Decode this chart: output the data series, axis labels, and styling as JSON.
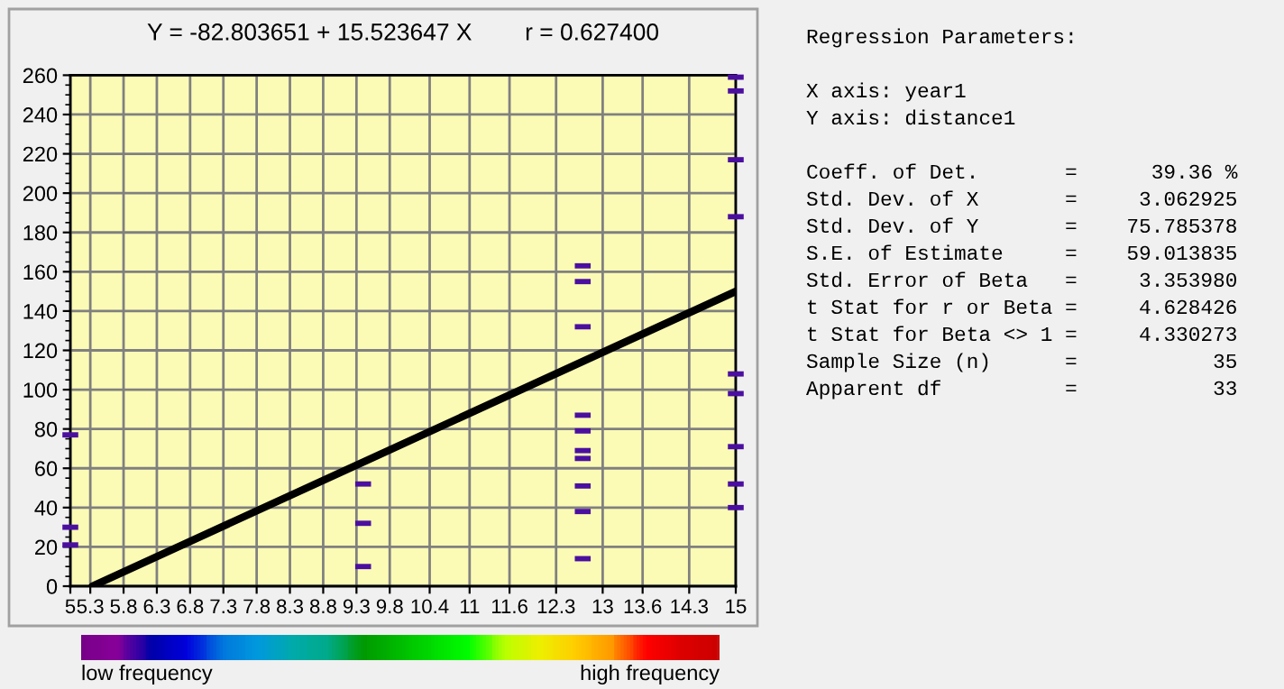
{
  "chart_data": {
    "type": "scatter",
    "title": "Y = -82.803651 + 15.523647 X        r = 0.627400",
    "xlim": [
      5,
      15
    ],
    "xticks": [
      5,
      5.3,
      5.8,
      6.3,
      6.8,
      7.3,
      7.8,
      8.3,
      8.8,
      9.3,
      9.8,
      10.4,
      11,
      11.6,
      12.3,
      13,
      13.6,
      14.3,
      15
    ],
    "ylim": [
      0,
      260
    ],
    "yticks": [
      0,
      20,
      40,
      60,
      80,
      100,
      120,
      140,
      160,
      180,
      200,
      220,
      240,
      260
    ],
    "grid": true,
    "series": [
      {
        "marker": "square",
        "color": "#4b0fa0",
        "x": [
          5,
          5,
          5,
          9.4,
          9.4,
          9.4,
          12.7,
          12.7,
          12.7,
          12.7,
          12.7,
          12.7,
          12.7,
          12.7,
          12.7,
          12.7,
          15,
          15,
          15,
          15,
          15,
          15,
          15,
          15,
          15
        ],
        "values": [
          77,
          30,
          21,
          52,
          32,
          10,
          163,
          155,
          132,
          87,
          79,
          69,
          65,
          51,
          38,
          14,
          259,
          252,
          217,
          188,
          108,
          98,
          71,
          52,
          40
        ]
      },
      {
        "type": "line",
        "color": "#000000",
        "x": [
          5.33,
          15
        ],
        "values": [
          0,
          150
        ]
      }
    ],
    "annotations": [
      "low frequency",
      "high frequency",
      "Regression Parameters:",
      "X axis: year1",
      "Y axis: distance1",
      "Coeff. of Det.       =      39.36 %",
      "Std. Dev. of X       =     3.062925",
      "Std. Dev. of Y       =    75.785378",
      "S.E. of Estimate     =    59.013835",
      "Std. Error of Beta   =     3.353980",
      "t Stat for r or Beta =     4.628426",
      "t Stat for Beta <> 1 =     4.330273",
      "Sample Size (n)      =           35",
      "Apparent df          =           33"
    ]
  }
}
